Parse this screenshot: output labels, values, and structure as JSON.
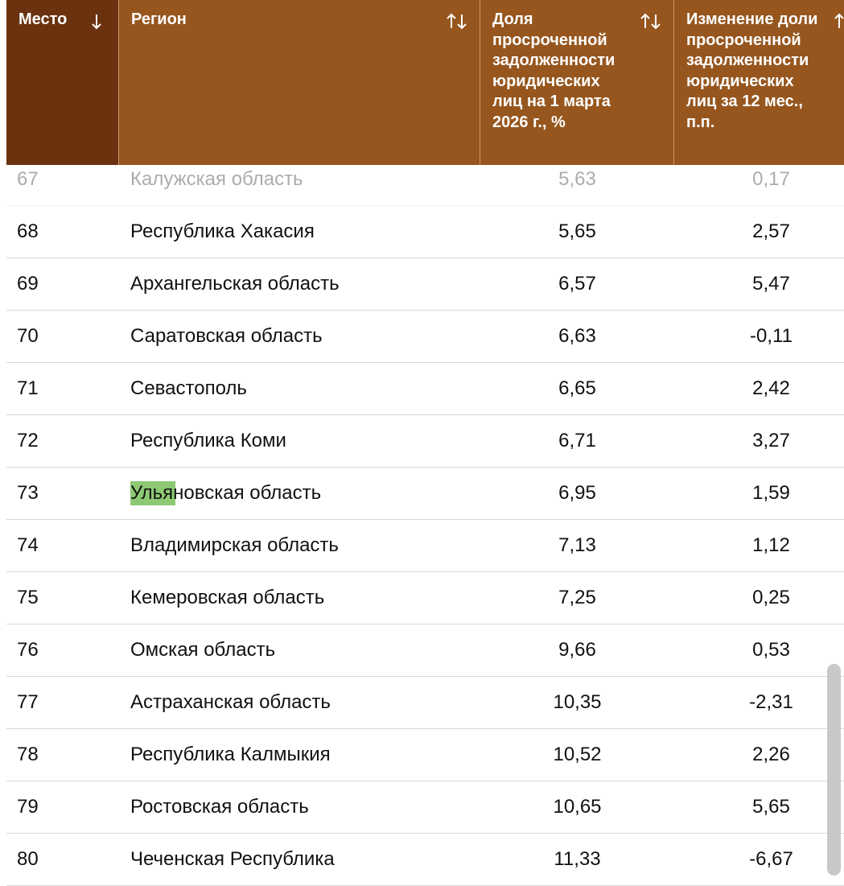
{
  "table": {
    "headers": [
      "Место",
      "Регион",
      "Доля просроченной задолженности юридических лиц на 1 марта 2026 г., %",
      "Изменение доли просроченной задолженности юридических лиц за 12 мес., п.п."
    ],
    "rows": [
      [
        "67",
        "Калужская область",
        "5,63",
        "0,17"
      ],
      [
        "68",
        "Республика Хакасия",
        "5,65",
        "2,57"
      ],
      [
        "69",
        "Архангельская область",
        "6,57",
        "5,47"
      ],
      [
        "70",
        "Саратовская область",
        "6,63",
        "-0,11"
      ],
      [
        "71",
        "Севастополь",
        "6,65",
        "2,42"
      ],
      [
        "72",
        "Республика Коми",
        "6,71",
        "3,27"
      ],
      [
        "73",
        "Ульяновская область",
        "6,95",
        "1,59"
      ],
      [
        "74",
        "Владимирская область",
        "7,13",
        "1,12"
      ],
      [
        "75",
        "Кемеровская область",
        "7,25",
        "0,25"
      ],
      [
        "76",
        "Омская область",
        "9,66",
        "0,53"
      ],
      [
        "77",
        "Астраханская область",
        "10,35",
        "-2,31"
      ],
      [
        "78",
        "Республика Калмыкия",
        "10,52",
        "2,26"
      ],
      [
        "79",
        "Ростовская область",
        "10,65",
        "5,65"
      ],
      [
        "80",
        "Чеченская Республика",
        "11,33",
        "-6,67"
      ]
    ]
  }
}
